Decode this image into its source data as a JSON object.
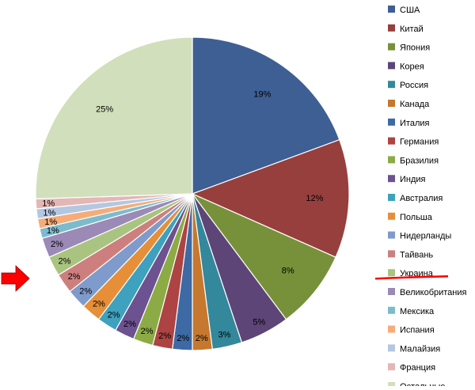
{
  "chart_data": {
    "type": "pie",
    "title": "",
    "legend_position": "right",
    "slices": [
      {
        "name": "США",
        "value": 19,
        "label": "19%",
        "color": "#3d5f93"
      },
      {
        "name": "Китай",
        "value": 12,
        "label": "12%",
        "color": "#973f3d"
      },
      {
        "name": "Япония",
        "value": 8,
        "label": "8%",
        "color": "#77913a"
      },
      {
        "name": "Корея",
        "value": 5,
        "label": "5%",
        "color": "#5d4578"
      },
      {
        "name": "Россия",
        "value": 3,
        "label": "3%",
        "color": "#33889b"
      },
      {
        "name": "Канада",
        "value": 2,
        "label": "2%",
        "color": "#c6782e"
      },
      {
        "name": "Италия",
        "value": 2,
        "label": "2%",
        "color": "#3d6aa5"
      },
      {
        "name": "Германия",
        "value": 2,
        "label": "2%",
        "color": "#ad4342"
      },
      {
        "name": "Бразилия",
        "value": 2,
        "label": "2%",
        "color": "#8cab45"
      },
      {
        "name": "Индия",
        "value": 2,
        "label": "2%",
        "color": "#6c5290"
      },
      {
        "name": "Австралия",
        "value": 2,
        "label": "2%",
        "color": "#3ea1bd"
      },
      {
        "name": "Польша",
        "value": 2,
        "label": "2%",
        "color": "#e68f38"
      },
      {
        "name": "Нидерланды",
        "value": 2,
        "label": "2%",
        "color": "#7e9bcb"
      },
      {
        "name": "Тайвань",
        "value": 2,
        "label": "2%",
        "color": "#cd7f7e"
      },
      {
        "name": "Украина",
        "value": 2,
        "label": "2%",
        "color": "#a9c480"
      },
      {
        "name": "Великобритания",
        "value": 2,
        "label": "2%",
        "color": "#9b8ab6"
      },
      {
        "name": "Мексика",
        "value": 1,
        "label": "1%",
        "color": "#7cbbcd"
      },
      {
        "name": "Испания",
        "value": 1,
        "label": "1%",
        "color": "#f6ac79"
      },
      {
        "name": "Малайзия",
        "value": 1,
        "label": "1%",
        "color": "#b4c7e2"
      },
      {
        "name": "Франция",
        "value": 1,
        "label": "1%",
        "color": "#e4b6b5"
      },
      {
        "name": "Остальные",
        "value": 25,
        "label": "25%",
        "color": "#d1dfbc"
      }
    ],
    "start_angle_deg": 0,
    "direction": "clockwise",
    "highlight": {
      "item": "Украина",
      "underline_color": "#ff0000",
      "arrow_color": "#ff0000"
    }
  }
}
